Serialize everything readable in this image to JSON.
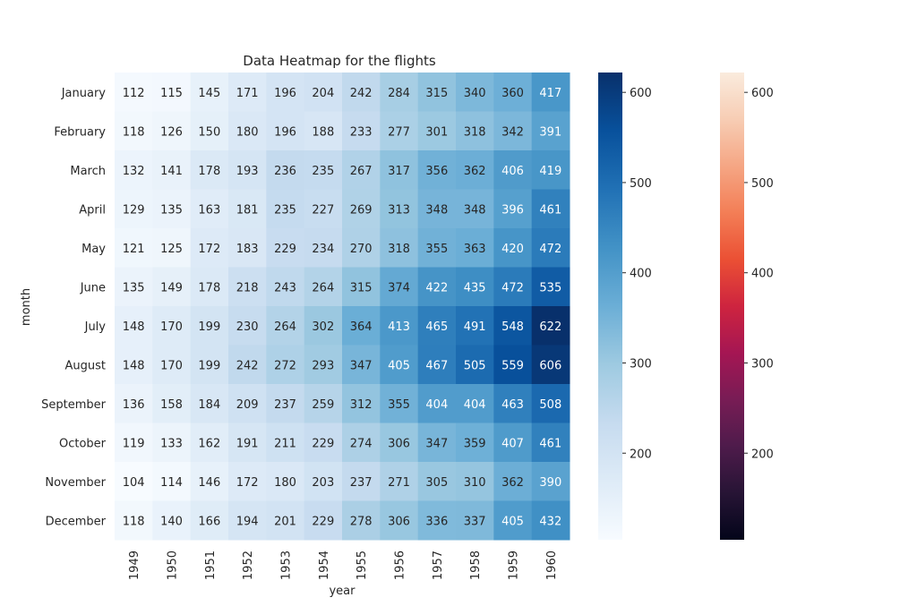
{
  "chart_data": {
    "type": "heatmap",
    "title": "Data Heatmap for the flights",
    "xlabel": "year",
    "ylabel": "month",
    "x": [
      "1949",
      "1950",
      "1951",
      "1952",
      "1953",
      "1954",
      "1955",
      "1956",
      "1957",
      "1958",
      "1959",
      "1960"
    ],
    "y": [
      "January",
      "February",
      "March",
      "April",
      "May",
      "June",
      "July",
      "August",
      "September",
      "October",
      "November",
      "December"
    ],
    "values": [
      [
        112,
        115,
        145,
        171,
        196,
        204,
        242,
        284,
        315,
        340,
        360,
        417
      ],
      [
        118,
        126,
        150,
        180,
        196,
        188,
        233,
        277,
        301,
        318,
        342,
        391
      ],
      [
        132,
        141,
        178,
        193,
        236,
        235,
        267,
        317,
        356,
        362,
        406,
        419
      ],
      [
        129,
        135,
        163,
        181,
        235,
        227,
        269,
        313,
        348,
        348,
        396,
        461
      ],
      [
        121,
        125,
        172,
        183,
        229,
        234,
        270,
        318,
        355,
        363,
        420,
        472
      ],
      [
        135,
        149,
        178,
        218,
        243,
        264,
        315,
        374,
        422,
        435,
        472,
        535
      ],
      [
        148,
        170,
        199,
        230,
        264,
        302,
        364,
        413,
        465,
        491,
        548,
        622
      ],
      [
        148,
        170,
        199,
        242,
        272,
        293,
        347,
        405,
        467,
        505,
        559,
        606
      ],
      [
        136,
        158,
        184,
        209,
        237,
        259,
        312,
        355,
        404,
        404,
        463,
        508
      ],
      [
        119,
        133,
        162,
        191,
        211,
        229,
        274,
        306,
        347,
        359,
        407,
        461
      ],
      [
        104,
        114,
        146,
        172,
        180,
        203,
        237,
        271,
        305,
        310,
        362,
        390
      ],
      [
        118,
        140,
        166,
        194,
        201,
        229,
        278,
        306,
        336,
        337,
        405,
        432
      ]
    ],
    "vmin": 104,
    "vmax": 622,
    "colorbars": [
      {
        "cmap": "Blues",
        "ticks": [
          200,
          300,
          400,
          500,
          600
        ]
      },
      {
        "cmap": "rocket",
        "ticks": [
          200,
          300,
          400,
          500,
          600
        ]
      }
    ],
    "grid": false,
    "annotated": true
  }
}
